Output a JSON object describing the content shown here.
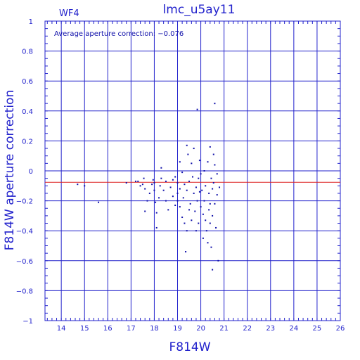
{
  "chart_data": {
    "type": "scatter",
    "title": "lmc_u5ay11",
    "chip_label": "WF4",
    "annotation": "Average aperture correction: −0.076",
    "xlabel": "F814W",
    "ylabel": "F814W aperture correction",
    "xlim": [
      13.3,
      26
    ],
    "ylim": [
      -1,
      1
    ],
    "xticks": [
      14,
      15,
      16,
      17,
      18,
      19,
      20,
      21,
      22,
      23,
      24,
      25,
      26
    ],
    "yticks": [
      -1,
      -0.8,
      -0.6,
      -0.4,
      -0.2,
      0,
      0.2,
      0.4,
      0.6,
      0.8,
      1
    ],
    "xtick_labels": [
      "14",
      "15",
      "16",
      "17",
      "18",
      "19",
      "20",
      "21",
      "22",
      "23",
      "24",
      "25",
      "26"
    ],
    "ytick_labels": [
      "−1",
      "−0.8",
      "−0.6",
      "−0.4",
      "−0.2",
      "0",
      "0.2",
      "0.4",
      "0.6",
      "0.8",
      "1"
    ],
    "reference_line": {
      "y": -0.076,
      "color": "#dd2222"
    },
    "grid": true,
    "colors": {
      "axis": "#2222cc",
      "points": "#1111aa",
      "grid": "#2222cc"
    },
    "points": [
      [
        14.7,
        -0.09
      ],
      [
        15.0,
        -0.1
      ],
      [
        15.6,
        -0.21
      ],
      [
        16.8,
        -0.08
      ],
      [
        17.2,
        -0.07
      ],
      [
        17.3,
        -0.07
      ],
      [
        17.4,
        -0.1
      ],
      [
        17.5,
        -0.09
      ],
      [
        17.55,
        -0.05
      ],
      [
        17.6,
        -0.12
      ],
      [
        17.7,
        -0.2
      ],
      [
        17.6,
        -0.27
      ],
      [
        17.8,
        -0.15
      ],
      [
        17.9,
        -0.09
      ],
      [
        17.95,
        -0.06
      ],
      [
        18.0,
        -0.13
      ],
      [
        18.0,
        -0.08
      ],
      [
        18.05,
        -0.21
      ],
      [
        18.1,
        -0.28
      ],
      [
        18.1,
        -0.38
      ],
      [
        18.2,
        -0.18
      ],
      [
        18.25,
        -0.1
      ],
      [
        18.3,
        -0.05
      ],
      [
        18.3,
        0.02
      ],
      [
        18.4,
        -0.13
      ],
      [
        18.5,
        -0.2
      ],
      [
        18.5,
        -0.07
      ],
      [
        18.6,
        -0.26
      ],
      [
        18.7,
        -0.11
      ],
      [
        18.8,
        -0.06
      ],
      [
        18.8,
        -0.17
      ],
      [
        18.9,
        -0.23
      ],
      [
        18.9,
        -0.04
      ],
      [
        19.0,
        -0.15
      ],
      [
        19.0,
        -0.2
      ],
      [
        19.0,
        -0.08
      ],
      [
        19.1,
        -0.24
      ],
      [
        19.1,
        -0.12
      ],
      [
        19.1,
        0.06
      ],
      [
        19.2,
        -0.01
      ],
      [
        19.2,
        -0.31
      ],
      [
        19.25,
        -0.18
      ],
      [
        19.3,
        -0.09
      ],
      [
        19.3,
        -0.35
      ],
      [
        19.35,
        -0.54
      ],
      [
        19.4,
        0.17
      ],
      [
        19.4,
        -0.13
      ],
      [
        19.4,
        -0.4
      ],
      [
        19.45,
        0.11
      ],
      [
        19.5,
        -0.07
      ],
      [
        19.5,
        -0.26
      ],
      [
        19.55,
        -0.22
      ],
      [
        19.6,
        0.05
      ],
      [
        19.6,
        -0.33
      ],
      [
        19.65,
        -0.04
      ],
      [
        19.7,
        -0.15
      ],
      [
        19.7,
        0.15
      ],
      [
        19.75,
        -0.27
      ],
      [
        19.8,
        -0.11
      ],
      [
        19.8,
        -0.4
      ],
      [
        19.85,
        0.41
      ],
      [
        19.85,
        -0.2
      ],
      [
        19.9,
        -0.05
      ],
      [
        19.9,
        -0.35
      ],
      [
        19.95,
        -0.14
      ],
      [
        19.95,
        0.07
      ],
      [
        20.0,
        -0.24
      ],
      [
        20.0,
        -0.02
      ],
      [
        20.05,
        -0.13
      ],
      [
        20.1,
        -0.29
      ],
      [
        20.1,
        -0.45
      ],
      [
        20.15,
        0.0
      ],
      [
        20.15,
        -0.2
      ],
      [
        20.2,
        -0.33
      ],
      [
        20.2,
        -0.1
      ],
      [
        20.25,
        -0.4
      ],
      [
        20.3,
        0.06
      ],
      [
        20.3,
        -0.48
      ],
      [
        20.35,
        -0.26
      ],
      [
        20.35,
        -0.15
      ],
      [
        20.4,
        0.16
      ],
      [
        20.4,
        -0.22
      ],
      [
        20.4,
        -0.35
      ],
      [
        20.45,
        -0.05
      ],
      [
        20.45,
        -0.51
      ],
      [
        20.5,
        -0.3
      ],
      [
        20.5,
        -0.12
      ],
      [
        20.5,
        -0.66
      ],
      [
        20.55,
        0.11
      ],
      [
        20.55,
        -0.08
      ],
      [
        20.6,
        0.45
      ],
      [
        20.6,
        -0.22
      ],
      [
        20.6,
        0.04
      ],
      [
        20.65,
        -0.38
      ],
      [
        20.7,
        -0.16
      ],
      [
        20.7,
        -0.02
      ],
      [
        20.75,
        -0.6
      ],
      [
        20.8,
        -0.11
      ]
    ]
  }
}
